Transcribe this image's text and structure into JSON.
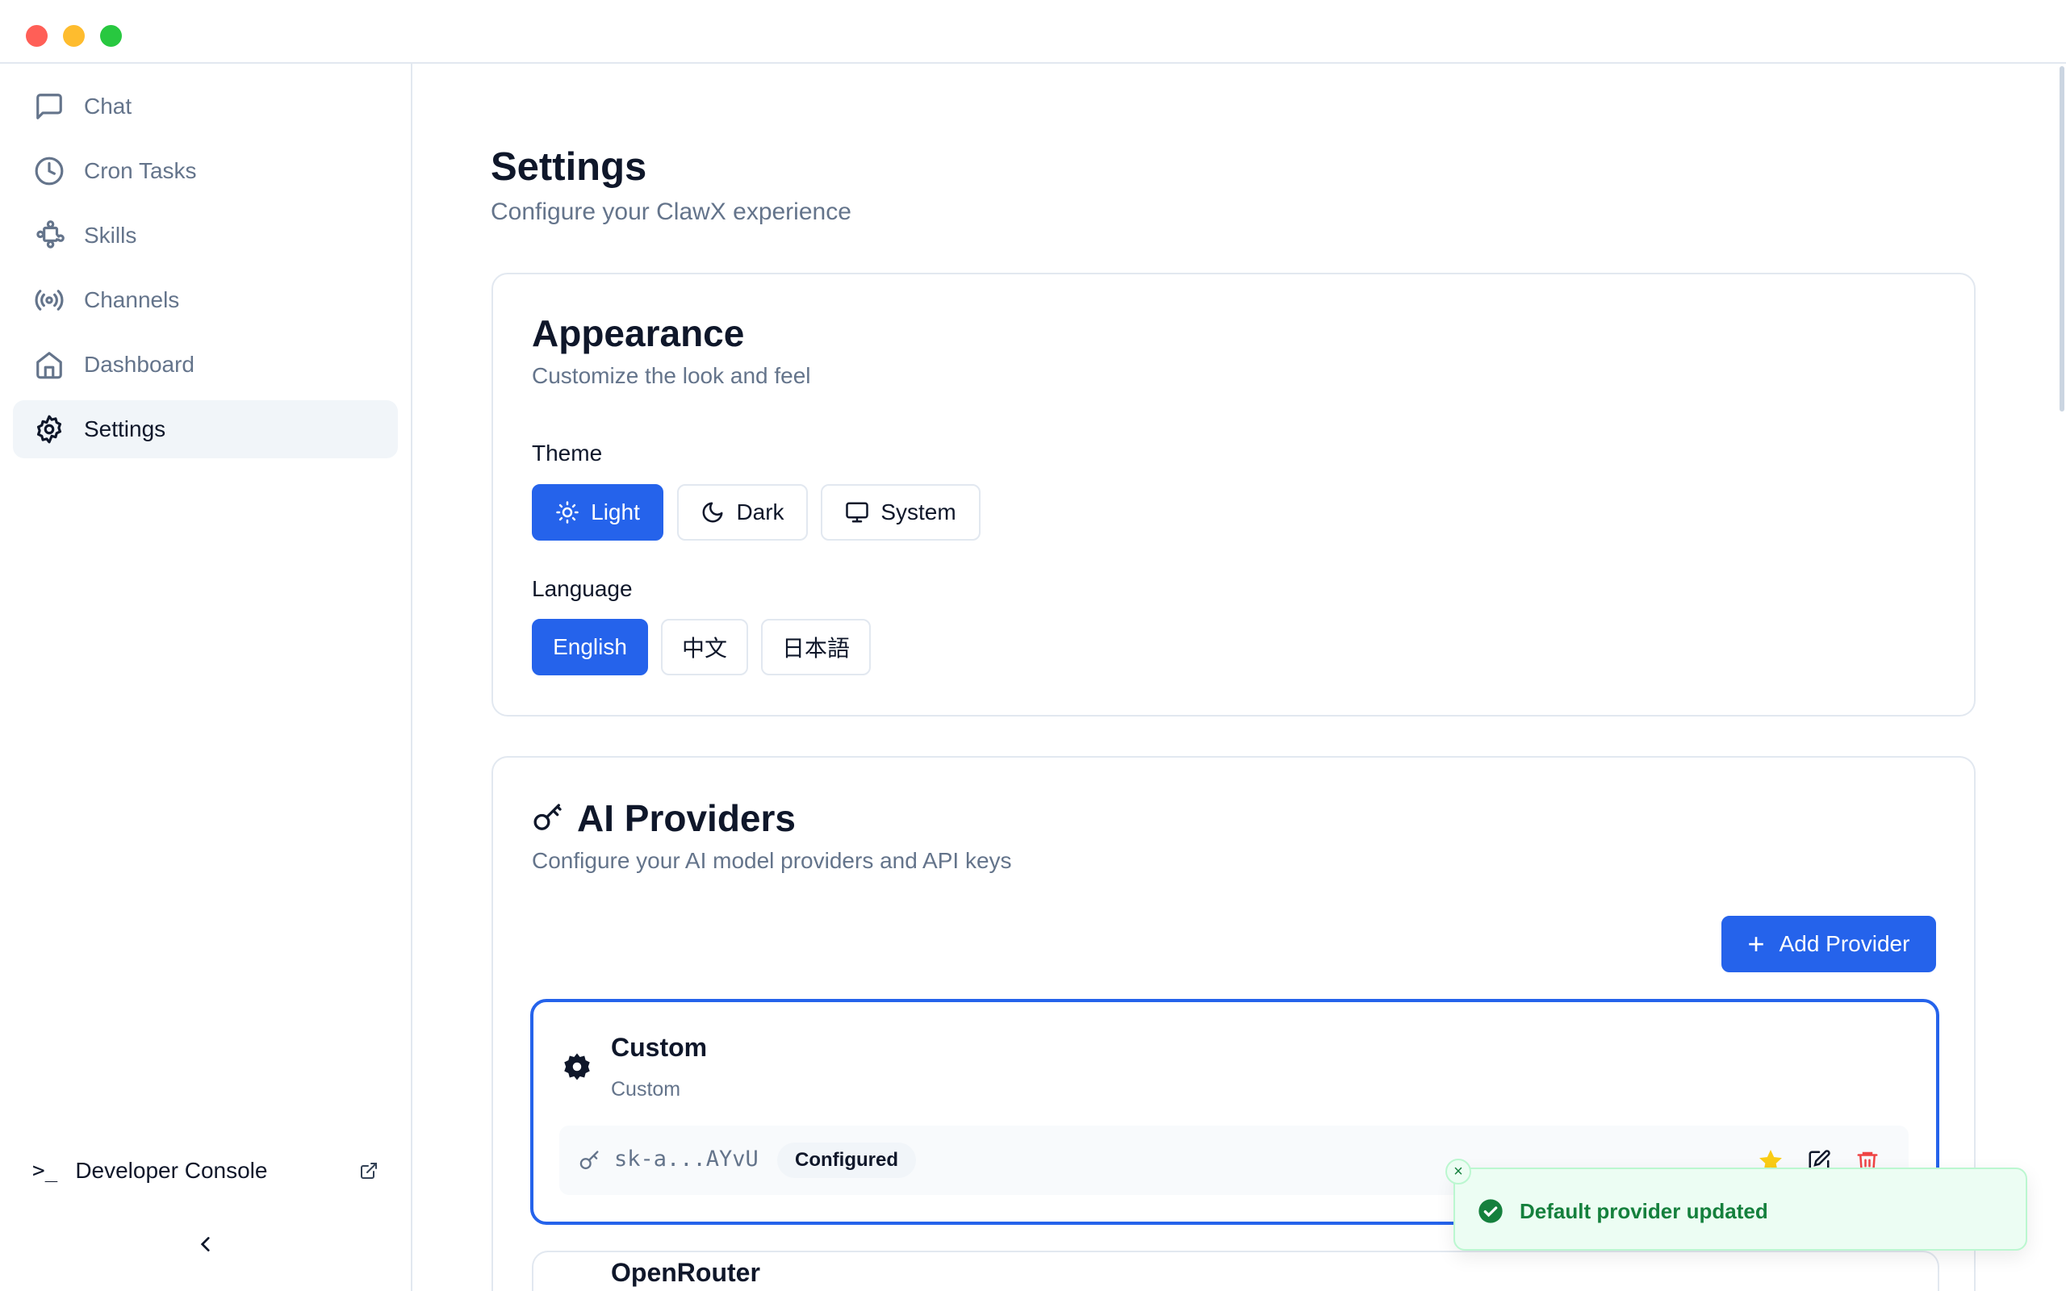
{
  "sidebar": {
    "items": [
      {
        "label": "Chat",
        "icon": "message-square-icon"
      },
      {
        "label": "Cron Tasks",
        "icon": "clock-icon"
      },
      {
        "label": "Skills",
        "icon": "puzzle-icon"
      },
      {
        "label": "Channels",
        "icon": "radio-icon"
      },
      {
        "label": "Dashboard",
        "icon": "home-icon"
      },
      {
        "label": "Settings",
        "icon": "gear-icon",
        "active": true
      }
    ],
    "developer_console": "Developer Console"
  },
  "header": {
    "title": "Settings",
    "subtitle": "Configure your ClawX experience"
  },
  "appearance": {
    "title": "Appearance",
    "subtitle": "Customize the look and feel",
    "theme_label": "Theme",
    "themes": [
      "Light",
      "Dark",
      "System"
    ],
    "selected_theme": "Light",
    "language_label": "Language",
    "languages": [
      "English",
      "中文",
      "日本語"
    ],
    "selected_language": "English"
  },
  "providers": {
    "title": "AI Providers",
    "subtitle": "Configure your AI model providers and API keys",
    "add_label": "Add Provider",
    "items": [
      {
        "name": "Custom",
        "type": "Custom",
        "key": "sk-a...AYvU",
        "status": "Configured",
        "default": true
      },
      {
        "name": "OpenRouter"
      }
    ]
  },
  "toast": {
    "message": "Default provider updated"
  },
  "colors": {
    "accent": "#2563eb",
    "success": "#15803d",
    "danger": "#ef4444",
    "star": "#facc15"
  }
}
